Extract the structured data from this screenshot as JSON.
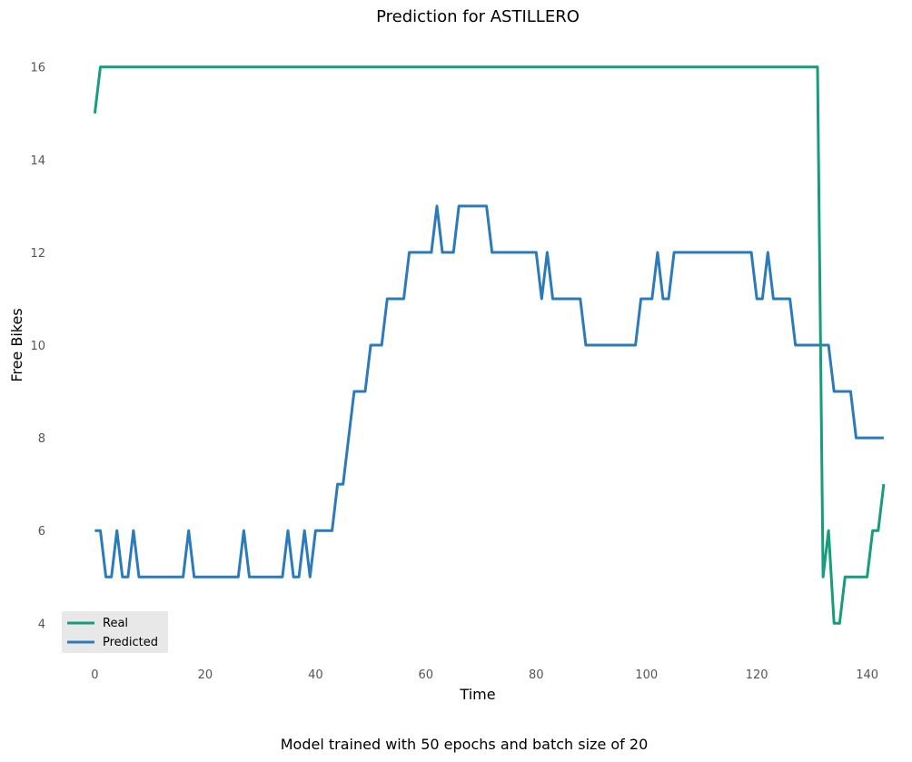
{
  "chart_data": {
    "type": "line",
    "title": "Prediction for ASTILLERO",
    "xlabel": "Time",
    "ylabel": "Free Bikes",
    "footer": "Model trained with 50 epochs and batch size of 20",
    "xlim": [
      -6,
      145
    ],
    "ylim": [
      3.3,
      16.7
    ],
    "xticks": [
      0,
      20,
      40,
      60,
      80,
      100,
      120,
      140
    ],
    "yticks": [
      4,
      6,
      8,
      10,
      12,
      14,
      16
    ],
    "grid": false,
    "legend_position": "bottom-left",
    "series": [
      {
        "name": "Real",
        "color": "#179c7d",
        "x": [
          0,
          1,
          131,
          132,
          133,
          134,
          135,
          136,
          140,
          141,
          142,
          143
        ],
        "y": [
          15,
          16,
          16,
          5,
          6,
          4,
          4,
          5,
          5,
          6,
          6,
          7
        ]
      },
      {
        "name": "Predicted",
        "color": "#2b7bba",
        "x": [
          0,
          1,
          2,
          3,
          4,
          5,
          6,
          7,
          8,
          16,
          17,
          18,
          26,
          27,
          28,
          34,
          35,
          36,
          37,
          38,
          39,
          40,
          43,
          44,
          45,
          47,
          49,
          50,
          52,
          53,
          56,
          57,
          61,
          62,
          63,
          65,
          66,
          71,
          72,
          80,
          81,
          82,
          83,
          88,
          89,
          98,
          99,
          101,
          102,
          103,
          104,
          105,
          106,
          119,
          120,
          121,
          122,
          123,
          126,
          127,
          131,
          132,
          133,
          134,
          137,
          138,
          143
        ],
        "y": [
          6,
          6,
          5,
          5,
          6,
          5,
          5,
          6,
          5,
          5,
          6,
          5,
          5,
          6,
          5,
          5,
          6,
          5,
          5,
          6,
          5,
          6,
          6,
          7,
          7,
          9,
          9,
          10,
          10,
          11,
          11,
          12,
          12,
          13,
          12,
          12,
          13,
          13,
          12,
          12,
          11,
          12,
          11,
          11,
          10,
          10,
          11,
          11,
          12,
          11,
          11,
          12,
          12,
          12,
          11,
          11,
          12,
          11,
          11,
          10,
          10,
          10,
          10,
          9,
          9,
          8,
          8
        ]
      }
    ]
  }
}
